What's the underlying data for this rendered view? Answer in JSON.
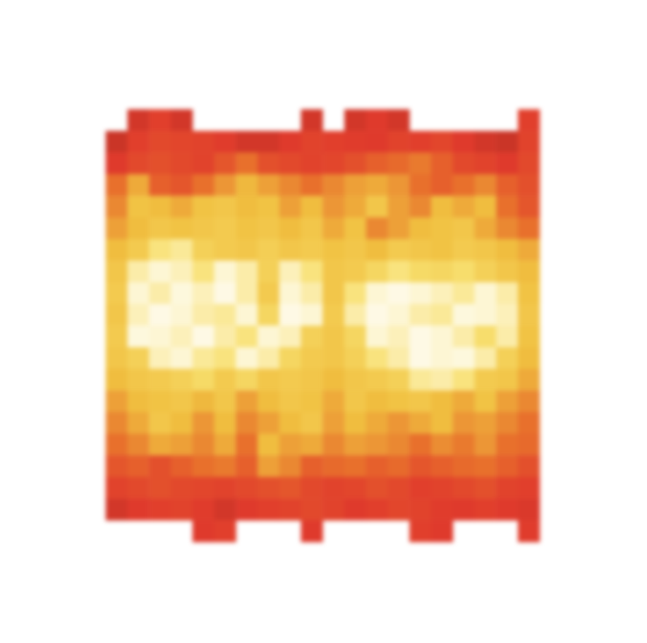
{
  "chart_data": {
    "type": "heatmap",
    "tick_labels": false,
    "grid": false,
    "zlim": [
      0,
      1
    ],
    "cells": [
      [
        null,
        0.3,
        0.35,
        0.3,
        null,
        null,
        null,
        null,
        null,
        0.3,
        null,
        0.3,
        0.33,
        0.3,
        null,
        null,
        null,
        null,
        null,
        0.35
      ],
      [
        0.28,
        0.35,
        0.38,
        0.37,
        0.36,
        0.34,
        0.3,
        0.3,
        0.33,
        0.36,
        0.35,
        0.34,
        0.33,
        0.36,
        0.35,
        0.37,
        0.33,
        0.3,
        0.28,
        0.36
      ],
      [
        0.33,
        0.38,
        0.4,
        0.38,
        0.36,
        0.42,
        0.5,
        0.4,
        0.38,
        0.36,
        0.37,
        0.4,
        0.45,
        0.48,
        0.52,
        0.45,
        0.38,
        0.36,
        0.33,
        0.38
      ],
      [
        0.5,
        0.62,
        0.45,
        0.42,
        0.5,
        0.58,
        0.65,
        0.6,
        0.55,
        0.5,
        0.55,
        0.6,
        0.62,
        0.58,
        0.5,
        0.45,
        0.5,
        0.55,
        0.45,
        0.4
      ],
      [
        0.55,
        0.68,
        0.66,
        0.62,
        0.68,
        0.7,
        0.66,
        0.68,
        0.6,
        0.66,
        0.58,
        0.62,
        0.7,
        0.6,
        0.55,
        0.66,
        0.62,
        0.66,
        0.5,
        0.42
      ],
      [
        0.6,
        0.66,
        0.7,
        0.68,
        0.7,
        0.72,
        0.68,
        0.7,
        0.66,
        0.7,
        0.62,
        0.68,
        0.55,
        0.6,
        0.66,
        0.68,
        0.7,
        0.62,
        0.55,
        0.5
      ],
      [
        0.66,
        0.72,
        0.85,
        0.88,
        0.75,
        0.72,
        0.7,
        0.74,
        0.7,
        0.72,
        0.68,
        0.7,
        0.66,
        0.72,
        0.7,
        0.68,
        0.72,
        0.7,
        0.66,
        0.62
      ],
      [
        0.7,
        0.9,
        0.95,
        0.92,
        0.85,
        0.95,
        0.9,
        0.75,
        0.92,
        0.85,
        0.7,
        0.72,
        0.78,
        0.85,
        0.8,
        0.78,
        0.82,
        0.75,
        0.7,
        0.66
      ],
      [
        0.72,
        0.95,
        0.9,
        0.96,
        0.92,
        0.97,
        0.9,
        0.72,
        0.95,
        0.9,
        0.7,
        0.85,
        0.95,
        0.97,
        0.95,
        0.92,
        0.88,
        0.95,
        0.9,
        0.68
      ],
      [
        0.7,
        0.92,
        0.97,
        0.95,
        0.9,
        0.88,
        0.95,
        0.78,
        0.97,
        0.95,
        0.72,
        0.9,
        0.97,
        0.95,
        0.9,
        0.88,
        0.96,
        0.95,
        0.92,
        0.7
      ],
      [
        0.72,
        0.96,
        0.95,
        0.92,
        0.97,
        0.9,
        0.85,
        0.95,
        0.92,
        0.75,
        0.7,
        0.78,
        0.95,
        0.92,
        0.97,
        0.95,
        0.9,
        0.82,
        0.9,
        0.68
      ],
      [
        0.7,
        0.75,
        0.92,
        0.95,
        0.88,
        0.85,
        0.95,
        0.9,
        0.78,
        0.72,
        0.7,
        0.75,
        0.85,
        0.9,
        0.97,
        0.95,
        0.96,
        0.9,
        0.75,
        0.66
      ],
      [
        0.66,
        0.7,
        0.72,
        0.75,
        0.8,
        0.72,
        0.78,
        0.7,
        0.72,
        0.7,
        0.66,
        0.7,
        0.72,
        0.75,
        0.88,
        0.9,
        0.85,
        0.72,
        0.7,
        0.62
      ],
      [
        0.6,
        0.66,
        0.68,
        0.7,
        0.65,
        0.7,
        0.6,
        0.66,
        0.7,
        0.68,
        0.62,
        0.7,
        0.66,
        0.68,
        0.7,
        0.66,
        0.62,
        0.68,
        0.6,
        0.55
      ],
      [
        0.55,
        0.62,
        0.7,
        0.66,
        0.58,
        0.66,
        0.55,
        0.6,
        0.66,
        0.7,
        0.6,
        0.66,
        0.62,
        0.58,
        0.62,
        0.66,
        0.58,
        0.6,
        0.55,
        0.5
      ],
      [
        0.5,
        0.55,
        0.62,
        0.6,
        0.55,
        0.62,
        0.5,
        0.66,
        0.6,
        0.62,
        0.55,
        0.6,
        0.58,
        0.55,
        0.5,
        0.56,
        0.52,
        0.58,
        0.5,
        0.48
      ],
      [
        0.42,
        0.45,
        0.4,
        0.45,
        0.5,
        0.52,
        0.45,
        0.6,
        0.55,
        0.45,
        0.48,
        0.5,
        0.45,
        0.48,
        0.42,
        0.45,
        0.48,
        0.5,
        0.45,
        0.4
      ],
      [
        0.36,
        0.38,
        0.4,
        0.38,
        0.37,
        0.36,
        0.38,
        0.4,
        0.42,
        0.38,
        0.36,
        0.37,
        0.4,
        0.38,
        0.35,
        0.36,
        0.38,
        0.4,
        0.36,
        0.35
      ],
      [
        0.3,
        0.33,
        0.35,
        0.36,
        0.34,
        0.3,
        0.33,
        0.35,
        0.36,
        0.38,
        0.36,
        0.33,
        0.35,
        0.37,
        0.36,
        0.34,
        0.33,
        0.35,
        0.33,
        0.32
      ],
      [
        null,
        null,
        null,
        null,
        0.33,
        0.35,
        null,
        null,
        null,
        0.33,
        null,
        null,
        null,
        null,
        0.35,
        0.33,
        null,
        null,
        null,
        0.34
      ]
    ]
  }
}
